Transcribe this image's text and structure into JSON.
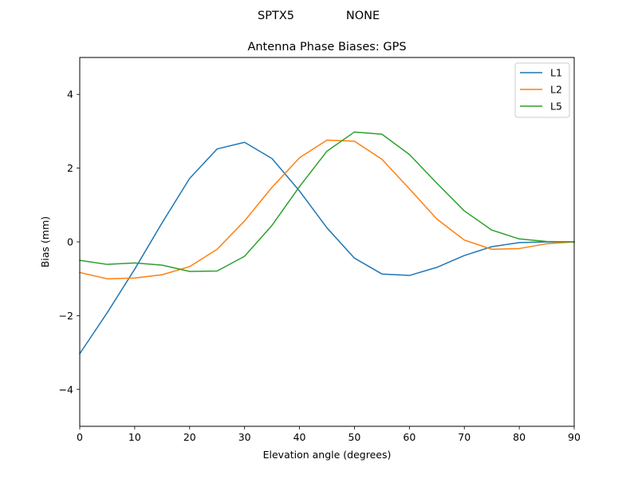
{
  "figure": {
    "suptitle_left": "SPTX5",
    "suptitle_right": "NONE"
  },
  "chart_data": {
    "type": "line",
    "title": "Antenna Phase Biases: GPS",
    "xlabel": "Elevation angle (degrees)",
    "ylabel": "Bias (mm)",
    "xlim": [
      0,
      90
    ],
    "ylim": [
      -5,
      5
    ],
    "xticks": [
      0,
      10,
      20,
      30,
      40,
      50,
      60,
      70,
      80,
      90
    ],
    "xtick_labels": [
      "0",
      "10",
      "20",
      "30",
      "40",
      "50",
      "60",
      "70",
      "80",
      "90"
    ],
    "yticks": [
      -4,
      -2,
      0,
      2,
      4
    ],
    "ytick_labels": [
      "−4",
      "−2",
      "0",
      "2",
      "4"
    ],
    "grid": false,
    "legend_position": "top-right",
    "x": [
      0,
      5,
      10,
      15,
      20,
      25,
      30,
      35,
      40,
      45,
      50,
      55,
      60,
      65,
      70,
      75,
      80,
      85,
      90
    ],
    "series": [
      {
        "name": "L1",
        "color": "#1f77b4",
        "values": [
          -3.03,
          -1.92,
          -0.74,
          0.52,
          1.72,
          2.52,
          2.7,
          2.26,
          1.38,
          0.38,
          -0.44,
          -0.87,
          -0.91,
          -0.69,
          -0.37,
          -0.13,
          -0.02,
          0.0,
          0.0
        ]
      },
      {
        "name": "L2",
        "color": "#ff7f0e",
        "values": [
          -0.83,
          -1.0,
          -0.98,
          -0.89,
          -0.67,
          -0.2,
          0.57,
          1.48,
          2.28,
          2.76,
          2.73,
          2.24,
          1.44,
          0.62,
          0.05,
          -0.2,
          -0.18,
          -0.05,
          0.0
        ]
      },
      {
        "name": "L5",
        "color": "#2ca02c",
        "values": [
          -0.5,
          -0.61,
          -0.57,
          -0.63,
          -0.8,
          -0.79,
          -0.39,
          0.45,
          1.5,
          2.46,
          2.98,
          2.92,
          2.37,
          1.59,
          0.84,
          0.32,
          0.08,
          0.01,
          0.0
        ]
      }
    ]
  }
}
